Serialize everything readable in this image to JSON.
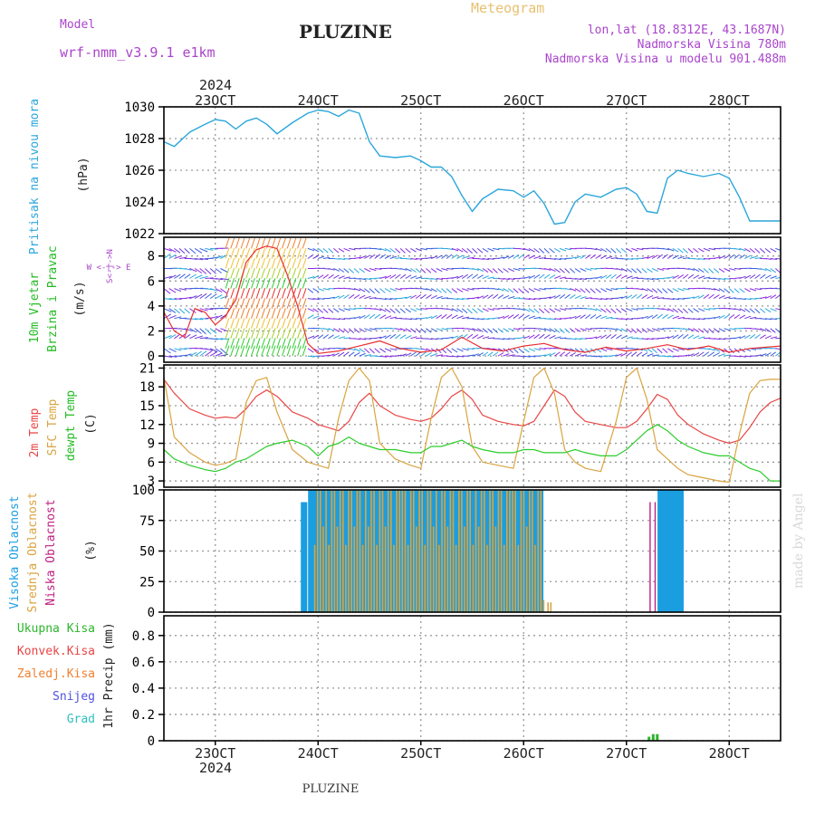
{
  "header": {
    "meteogram_label": "Meteogram",
    "model_label": "Model",
    "model_name": "wrf-nmm_v3.9.1 e1km",
    "station_title": "PLUZINE",
    "coords": "lon,lat (18.8312E, 43.1687N)",
    "elevation": "Nadmorska Visina 780m",
    "model_elevation": "Nadmorska Visina u modelu 901.488m",
    "footer_station": "PLUZINE",
    "watermark": "made by Angel",
    "year_top": "2024",
    "year_bottom": "2024"
  },
  "colors": {
    "pressure": "#2aa6dc",
    "temp2m": "#e84545",
    "sfc": "#d9a441",
    "dewpt": "#2ccd2c",
    "high_cloud": "#1b9ee0",
    "mid_cloud": "#d9a441",
    "low_cloud": "#c02080",
    "precip": "#2bb52b",
    "wind_label": "#22bb22",
    "dir_label": "#aa44cc"
  },
  "x_axis": {
    "day_labels": [
      "23OCT",
      "24OCT",
      "25OCT",
      "26OCT",
      "27OCT",
      "28OCT"
    ],
    "day_positions": [
      23,
      24,
      25,
      26,
      27,
      28
    ],
    "range": [
      22.5,
      28.5
    ]
  },
  "chart_data": [
    {
      "type": "line",
      "panel": "pressure",
      "ylabel_left": "Pritisak na nivou mora",
      "ylabel_unit": "(hPa)",
      "ylim": [
        1022,
        1030
      ],
      "yticks": [
        "1022",
        "1024",
        "1026",
        "1028",
        "1030"
      ],
      "series": [
        {
          "x": [
            22.5,
            22.6,
            22.75,
            22.9,
            23.0,
            23.1,
            23.2,
            23.3,
            23.4,
            23.5,
            23.6,
            23.75,
            23.9,
            24.0,
            24.1,
            24.2,
            24.3,
            24.4,
            24.5,
            24.6,
            24.75,
            24.9,
            25.0,
            25.1,
            25.2,
            25.3,
            25.4,
            25.5,
            25.6,
            25.75,
            25.9,
            26.0,
            26.1,
            26.2,
            26.3,
            26.4,
            26.5,
            26.6,
            26.75,
            26.9,
            27.0,
            27.1,
            27.2,
            27.3,
            27.4,
            27.5,
            27.6,
            27.75,
            27.9,
            28.0,
            28.1,
            28.2,
            28.3,
            28.4,
            28.5
          ],
          "y": [
            1027.8,
            1027.5,
            1028.4,
            1028.9,
            1029.2,
            1029.1,
            1028.6,
            1029.1,
            1029.3,
            1028.9,
            1028.3,
            1029.0,
            1029.6,
            1029.8,
            1029.7,
            1029.4,
            1029.8,
            1029.6,
            1027.8,
            1026.9,
            1026.8,
            1026.9,
            1026.6,
            1026.2,
            1026.2,
            1025.6,
            1024.4,
            1023.4,
            1024.2,
            1024.8,
            1024.7,
            1024.3,
            1024.7,
            1023.9,
            1022.6,
            1022.7,
            1024.0,
            1024.5,
            1024.3,
            1024.8,
            1024.9,
            1024.5,
            1023.4,
            1023.3,
            1025.5,
            1026.0,
            1025.8,
            1025.6,
            1025.8,
            1025.5,
            1024.3,
            1022.8,
            1022.8,
            1022.8,
            1022.8
          ]
        }
      ]
    },
    {
      "type": "line",
      "panel": "wind",
      "ylabel_left1": "10m Vjetar",
      "ylabel_left2": "Brzina i Pravac",
      "ylabel_unit": "(m/s)",
      "direction_label": "W <-|-> E",
      "direction_label2": "S<-|->N",
      "ylim": [
        -0.5,
        9.5
      ],
      "yticks": [
        "0",
        "2",
        "4",
        "6",
        "8"
      ],
      "series": [
        {
          "name": "speed",
          "x": [
            22.5,
            22.6,
            22.7,
            22.8,
            22.9,
            23.0,
            23.1,
            23.2,
            23.3,
            23.4,
            23.5,
            23.6,
            23.7,
            23.8,
            23.9,
            24.0,
            24.2,
            24.4,
            24.6,
            24.8,
            25.0,
            25.2,
            25.4,
            25.6,
            25.8,
            26.0,
            26.2,
            26.4,
            26.6,
            26.8,
            27.0,
            27.2,
            27.4,
            27.6,
            27.8,
            28.0,
            28.2,
            28.5
          ],
          "y": [
            3.5,
            2.0,
            1.5,
            3.8,
            3.5,
            2.5,
            3.2,
            4.5,
            7.5,
            8.5,
            8.8,
            8.6,
            6.5,
            4.0,
            1.0,
            0.2,
            0.4,
            0.8,
            1.2,
            0.6,
            0.3,
            0.5,
            1.5,
            0.6,
            0.4,
            0.8,
            1.0,
            0.5,
            0.3,
            0.7,
            0.4,
            0.6,
            0.9,
            0.5,
            0.8,
            0.3,
            0.6,
            0.8
          ]
        }
      ]
    },
    {
      "type": "line",
      "panel": "temperature",
      "ylabel_left1": "2m Temp",
      "ylabel_left2": "SFC Temp",
      "ylabel_left3": "dewpt Temp",
      "ylabel_unit": "(C)",
      "ylim": [
        2,
        21.5
      ],
      "yticks": [
        "3",
        "6",
        "9",
        "12",
        "15",
        "18",
        "21"
      ],
      "series": [
        {
          "name": "2m Temp",
          "x": [
            22.5,
            22.6,
            22.75,
            22.9,
            23.0,
            23.1,
            23.2,
            23.3,
            23.4,
            23.5,
            23.6,
            23.75,
            23.9,
            24.0,
            24.1,
            24.2,
            24.3,
            24.4,
            24.5,
            24.6,
            24.75,
            24.9,
            25.0,
            25.1,
            25.2,
            25.3,
            25.4,
            25.5,
            25.6,
            25.75,
            25.9,
            26.0,
            26.1,
            26.2,
            26.3,
            26.4,
            26.5,
            26.6,
            26.75,
            26.9,
            27.0,
            27.1,
            27.2,
            27.3,
            27.4,
            27.5,
            27.6,
            27.75,
            27.9,
            28.0,
            28.1,
            28.2,
            28.3,
            28.4,
            28.5
          ],
          "y": [
            19.2,
            17.0,
            14.5,
            13.5,
            13.0,
            13.2,
            13.0,
            14.5,
            16.5,
            17.5,
            16.5,
            14.0,
            13.0,
            12.0,
            11.5,
            11.0,
            12.5,
            15.5,
            17.0,
            15.0,
            13.5,
            12.8,
            12.5,
            13.0,
            14.5,
            16.5,
            17.5,
            16.0,
            13.5,
            12.5,
            12.0,
            11.8,
            12.5,
            15.0,
            17.5,
            16.5,
            14.0,
            12.5,
            12.0,
            11.5,
            11.5,
            12.5,
            14.5,
            16.8,
            16.0,
            13.5,
            12.0,
            10.5,
            9.5,
            9.0,
            9.5,
            11.5,
            14.0,
            15.5,
            16.2
          ]
        },
        {
          "name": "SFC Temp",
          "x": [
            22.5,
            22.6,
            22.75,
            22.9,
            23.0,
            23.1,
            23.2,
            23.3,
            23.4,
            23.5,
            23.6,
            23.75,
            23.9,
            24.0,
            24.1,
            24.2,
            24.3,
            24.4,
            24.5,
            24.6,
            24.75,
            24.9,
            25.0,
            25.1,
            25.2,
            25.3,
            25.4,
            25.5,
            25.6,
            25.75,
            25.9,
            26.0,
            26.1,
            26.2,
            26.3,
            26.4,
            26.5,
            26.6,
            26.75,
            26.9,
            27.0,
            27.1,
            27.2,
            27.3,
            27.4,
            27.5,
            27.6,
            27.75,
            27.9,
            28.0,
            28.1,
            28.2,
            28.3,
            28.4,
            28.5
          ],
          "y": [
            19.5,
            10.0,
            7.5,
            6.0,
            5.5,
            5.8,
            6.5,
            15.5,
            19.0,
            19.5,
            14.0,
            8.0,
            6.0,
            5.5,
            5.0,
            13.0,
            19.0,
            21.0,
            19.0,
            9.0,
            6.5,
            5.5,
            5.0,
            13.0,
            19.5,
            21.0,
            18.0,
            8.5,
            6.0,
            5.5,
            5.0,
            12.5,
            19.5,
            21.0,
            17.0,
            8.0,
            6.0,
            5.0,
            4.5,
            12.5,
            19.5,
            21.0,
            16.0,
            8.0,
            6.5,
            5.0,
            4.0,
            3.5,
            3.0,
            2.8,
            10.5,
            17.0,
            19.0,
            19.2,
            19.2
          ]
        },
        {
          "name": "dewpt Temp",
          "x": [
            22.5,
            22.6,
            22.75,
            22.9,
            23.0,
            23.1,
            23.2,
            23.3,
            23.4,
            23.5,
            23.6,
            23.75,
            23.9,
            24.0,
            24.1,
            24.2,
            24.3,
            24.4,
            24.5,
            24.6,
            24.75,
            24.9,
            25.0,
            25.1,
            25.2,
            25.3,
            25.4,
            25.5,
            25.6,
            25.75,
            25.9,
            26.0,
            26.1,
            26.2,
            26.3,
            26.4,
            26.5,
            26.6,
            26.75,
            26.9,
            27.0,
            27.1,
            27.2,
            27.3,
            27.4,
            27.5,
            27.6,
            27.75,
            27.9,
            28.0,
            28.1,
            28.2,
            28.3,
            28.4,
            28.5
          ],
          "y": [
            8.0,
            6.5,
            5.5,
            4.8,
            4.5,
            5.0,
            6.0,
            6.5,
            7.5,
            8.5,
            9.0,
            9.5,
            8.5,
            7.0,
            8.5,
            9.0,
            10.0,
            9.0,
            8.5,
            8.0,
            8.0,
            7.5,
            7.5,
            8.5,
            8.5,
            9.0,
            9.5,
            8.5,
            8.0,
            7.5,
            7.5,
            8.0,
            8.0,
            7.5,
            7.5,
            7.5,
            8.0,
            7.5,
            7.0,
            7.0,
            8.0,
            9.5,
            11.0,
            12.0,
            11.0,
            9.5,
            8.5,
            7.5,
            7.0,
            7.0,
            6.0,
            5.0,
            4.5,
            3.0,
            3.0
          ]
        }
      ]
    },
    {
      "type": "bar",
      "panel": "cloud",
      "ylabel_left1": "Visoka Oblacnost",
      "ylabel_left2": "Srednja Oblacnost",
      "ylabel_left3": "Niska Oblacnost",
      "ylabel_unit": "(%)",
      "ylim": [
        0,
        100
      ],
      "yticks": [
        "0",
        "25",
        "50",
        "75",
        "100"
      ],
      "series": [
        {
          "name": "Visoka Oblacnost",
          "segments": [
            [
              23.85,
              23.88,
              90
            ],
            [
              23.92,
              26.2,
              100
            ],
            [
              27.32,
              27.55,
              100
            ]
          ]
        },
        {
          "name": "Srednja Oblacnost",
          "segments": [
            [
              23.95,
              26.15,
              100
            ],
            [
              26.15,
              26.2,
              10
            ],
            [
              26.22,
              26.25,
              8
            ]
          ]
        },
        {
          "name": "Niska Oblacnost",
          "segments": [
            [
              27.23,
              27.25,
              90
            ],
            [
              27.28,
              27.3,
              90
            ]
          ]
        }
      ]
    },
    {
      "type": "bar",
      "panel": "precip",
      "legend_labels": [
        "Ukupna Kisa",
        "Konvek.Kisa",
        "Zaledj.Kisa",
        "Snijeg",
        "Grad"
      ],
      "ylabel_unit": "1hr Precip (mm)",
      "ylim": [
        0,
        0.95
      ],
      "yticks": [
        "0",
        "0.2",
        "0.4",
        "0.6",
        "0.8"
      ],
      "x": [
        27.22,
        27.26,
        27.3
      ],
      "values": [
        0.03,
        0.05,
        0.05
      ]
    }
  ]
}
